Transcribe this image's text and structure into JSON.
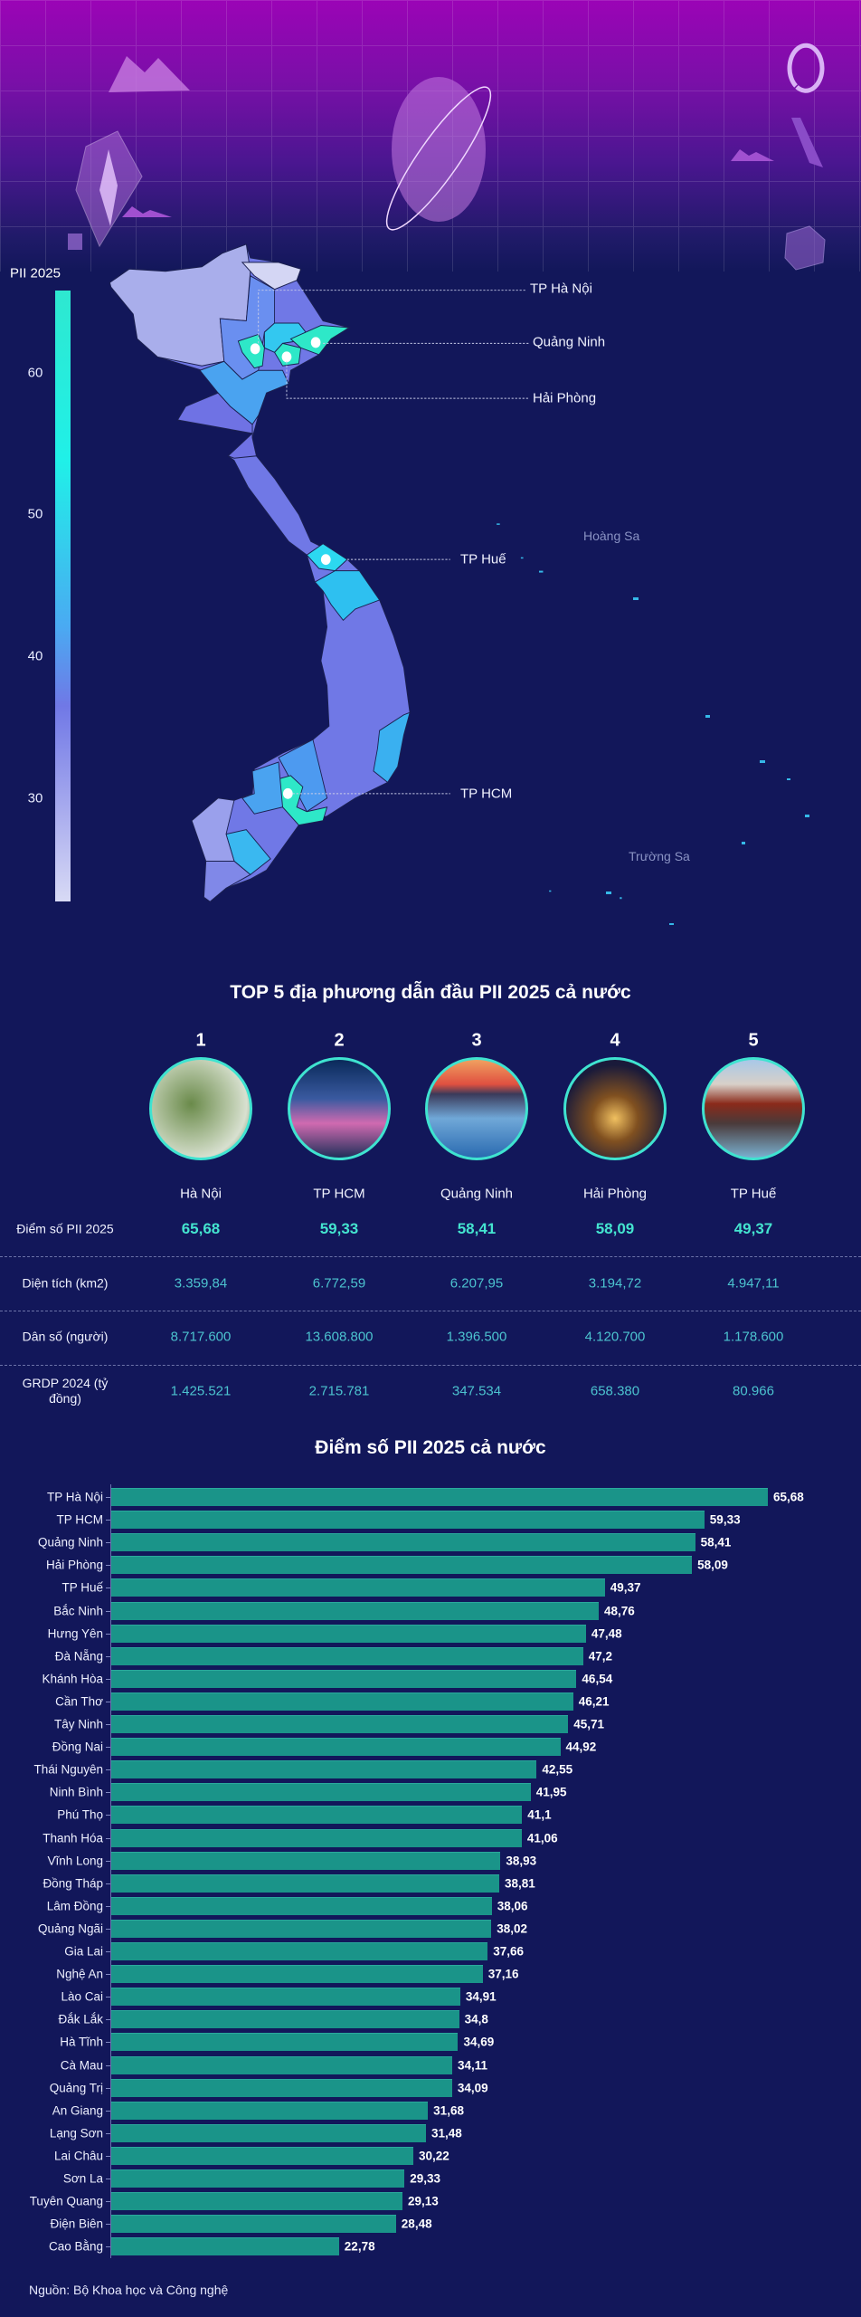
{
  "map": {
    "legend_title": "PII 2025",
    "legend_ticks": [
      "60",
      "50",
      "40",
      "30"
    ],
    "labels": {
      "hanoi": "TP Hà Nội",
      "quangninh": "Quảng Ninh",
      "haiphong": "Hải Phòng",
      "hue": "TP Huế",
      "hcm": "TP HCM"
    },
    "islands": {
      "hoangsa": "Hoàng Sa",
      "truongsa": "Trường Sa"
    },
    "colors": {
      "low": "#d6d8f4",
      "mid": "#7078e6",
      "high": "#2ee8d0"
    }
  },
  "top5": {
    "title": "TOP 5 địa phương dẫn đầu PII 2025 cả nước",
    "row_labels": {
      "score": "Điểm số PII 2025",
      "area": "Diện tích (km2)",
      "population": "Dân số (người)",
      "grdp": "GRDP 2024 (tỷ đồng)"
    },
    "items": [
      {
        "rank": "1",
        "name": "Hà Nội",
        "score": "65,68",
        "area": "3.359,84",
        "population": "8.717.600",
        "grdp": "1.425.521"
      },
      {
        "rank": "2",
        "name": "TP HCM",
        "score": "59,33",
        "area": "6.772,59",
        "population": "13.608.800",
        "grdp": "2.715.781"
      },
      {
        "rank": "3",
        "name": "Quảng Ninh",
        "score": "58,41",
        "area": "6.207,95",
        "population": "1.396.500",
        "grdp": "347.534"
      },
      {
        "rank": "4",
        "name": "Hải Phòng",
        "score": "58,09",
        "area": "3.194,72",
        "population": "4.120.700",
        "grdp": "658.380"
      },
      {
        "rank": "5",
        "name": "TP Huế",
        "score": "49,37",
        "area": "4.947,11",
        "population": "1.178.600",
        "grdp": "80.966"
      }
    ]
  },
  "chart_data": {
    "type": "bar",
    "orientation": "horizontal",
    "title": "Điểm số PII 2025 cả nước",
    "xlabel": "",
    "ylabel": "",
    "bar_color": "#1a9489",
    "categories": [
      "TP Hà Nội",
      "TP HCM",
      "Quảng Ninh",
      "Hải Phòng",
      "TP Huế",
      "Bắc Ninh",
      "Hưng Yên",
      "Đà Nẵng",
      "Khánh Hòa",
      "Cần Thơ",
      "Tây Ninh",
      "Đồng Nai",
      "Thái Nguyên",
      "Ninh Bình",
      "Phú Thọ",
      "Thanh Hóa",
      "Vĩnh Long",
      "Đồng Tháp",
      "Lâm Đồng",
      "Quảng Ngãi",
      "Gia Lai",
      "Nghệ An",
      "Lào Cai",
      "Đắk Lắk",
      "Hà Tĩnh",
      "Cà Mau",
      "Quảng Trị",
      "An Giang",
      "Lạng Sơn",
      "Lai Châu",
      "Sơn La",
      "Tuyên Quang",
      "Điện Biên",
      "Cao Bằng"
    ],
    "values": [
      65.68,
      59.33,
      58.41,
      58.09,
      49.37,
      48.76,
      47.48,
      47.2,
      46.54,
      46.21,
      45.71,
      44.92,
      42.55,
      41.95,
      41.1,
      41.06,
      38.93,
      38.81,
      38.06,
      38.02,
      37.66,
      37.16,
      34.91,
      34.8,
      34.69,
      34.11,
      34.09,
      31.68,
      31.48,
      30.22,
      29.33,
      29.13,
      28.48,
      22.78
    ],
    "value_labels": [
      "65,68",
      "59,33",
      "58,41",
      "58,09",
      "49,37",
      "48,76",
      "47,48",
      "47,2",
      "46,54",
      "46,21",
      "45,71",
      "44,92",
      "42,55",
      "41,95",
      "41,1",
      "41,06",
      "38,93",
      "38,81",
      "38,06",
      "38,02",
      "37,66",
      "37,16",
      "34,91",
      "34,8",
      "34,69",
      "34,11",
      "34,09",
      "31,68",
      "31,48",
      "30,22",
      "29,33",
      "29,13",
      "28,48",
      "22,78"
    ],
    "xlim": [
      0,
      65.68
    ]
  },
  "source": "Nguồn: Bộ Khoa học và Công nghệ"
}
